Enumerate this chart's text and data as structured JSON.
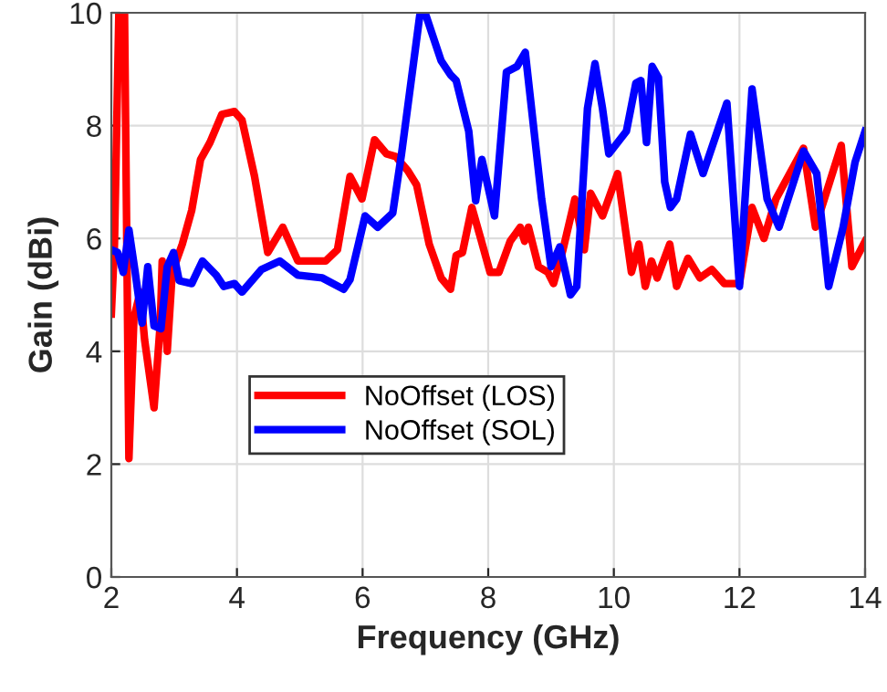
{
  "chart_data": {
    "type": "line",
    "xlabel": "Frequency (GHz)",
    "ylabel": "Gain (dBi)",
    "xlim": [
      2,
      14
    ],
    "xticks": [
      2,
      4,
      6,
      8,
      10,
      12,
      14
    ],
    "ylim": [
      0,
      10
    ],
    "yticks": [
      0,
      2,
      4,
      6,
      8,
      10
    ],
    "grid": true,
    "legend": "bottom left",
    "line_style": "solid",
    "marker": "none",
    "series": [
      {
        "name": "NoOffset (LOS)",
        "color": "#ff0000",
        "x": [
          2.0,
          2.05,
          2.12,
          2.21,
          2.28,
          2.36,
          2.46,
          2.53,
          2.68,
          2.78,
          2.81,
          2.89,
          2.97,
          3.13,
          3.28,
          3.42,
          3.57,
          3.76,
          3.96,
          4.08,
          4.28,
          4.49,
          4.73,
          4.97,
          5.41,
          5.6,
          5.8,
          5.99,
          6.19,
          6.38,
          6.53,
          6.72,
          6.86,
          7.06,
          7.25,
          7.4,
          7.49,
          7.59,
          7.74,
          7.88,
          8.03,
          8.17,
          8.35,
          8.51,
          8.58,
          8.64,
          8.8,
          8.95,
          9.04,
          9.19,
          9.38,
          9.53,
          9.63,
          9.82,
          10.06,
          10.28,
          10.4,
          10.5,
          10.6,
          10.69,
          10.89,
          11.0,
          11.18,
          11.37,
          11.56,
          11.76,
          12.0,
          12.2,
          12.39,
          12.58,
          13.02,
          13.21,
          13.62,
          13.79,
          14.0
        ],
        "values": [
          4.66,
          5.9,
          10,
          10,
          2.1,
          4.6,
          5.05,
          4.2,
          3.0,
          4.5,
          5.6,
          4.0,
          5.4,
          5.9,
          6.5,
          7.4,
          7.7,
          8.2,
          8.25,
          8.1,
          7.1,
          5.75,
          6.2,
          5.6,
          5.6,
          5.8,
          7.1,
          6.7,
          7.75,
          7.5,
          7.45,
          7.2,
          6.95,
          5.9,
          5.3,
          5.1,
          5.7,
          5.75,
          6.55,
          6.0,
          5.4,
          5.4,
          5.95,
          6.2,
          5.95,
          6.2,
          5.5,
          5.4,
          5.2,
          5.8,
          6.7,
          5.8,
          6.8,
          6.4,
          7.15,
          5.4,
          5.9,
          5.15,
          5.6,
          5.3,
          5.9,
          5.15,
          5.65,
          5.3,
          5.45,
          5.2,
          5.2,
          6.55,
          6.0,
          6.7,
          7.6,
          6.2,
          7.65,
          5.5,
          5.95
        ]
      },
      {
        "name": "NoOffset (SOL)",
        "color": "#0000ff",
        "x": [
          2.0,
          2.1,
          2.19,
          2.28,
          2.38,
          2.49,
          2.58,
          2.68,
          2.79,
          2.89,
          2.99,
          3.08,
          3.28,
          3.45,
          3.67,
          3.79,
          3.96,
          4.08,
          4.39,
          4.68,
          4.97,
          5.36,
          5.7,
          5.8,
          6.04,
          6.24,
          6.48,
          6.62,
          6.91,
          7.01,
          7.25,
          7.4,
          7.49,
          7.69,
          7.8,
          7.9,
          8.1,
          8.29,
          8.46,
          8.59,
          8.85,
          9.0,
          9.14,
          9.31,
          9.41,
          9.58,
          9.7,
          9.82,
          9.92,
          10.2,
          10.35,
          10.43,
          10.52,
          10.61,
          10.71,
          10.81,
          10.9,
          11.0,
          11.22,
          11.42,
          11.8,
          12.0,
          12.2,
          12.44,
          12.63,
          13.02,
          13.23,
          13.42,
          13.65,
          13.84,
          14.0
        ],
        "values": [
          5.8,
          5.75,
          5.4,
          6.15,
          5.4,
          4.5,
          5.5,
          4.45,
          4.4,
          5.5,
          5.75,
          5.25,
          5.2,
          5.6,
          5.35,
          5.15,
          5.2,
          5.05,
          5.45,
          5.6,
          5.35,
          5.3,
          5.1,
          5.27,
          6.4,
          6.2,
          6.45,
          7.5,
          9.95,
          9.95,
          9.15,
          8.9,
          8.8,
          7.9,
          6.67,
          7.4,
          6.4,
          8.95,
          9.05,
          9.3,
          6.7,
          5.5,
          5.85,
          5.0,
          5.15,
          8.3,
          9.1,
          8.3,
          7.5,
          7.9,
          8.75,
          8.8,
          7.7,
          9.05,
          8.85,
          7.0,
          6.55,
          6.7,
          7.85,
          7.15,
          8.4,
          5.15,
          8.65,
          6.7,
          6.2,
          7.55,
          7.15,
          5.15,
          6.2,
          7.35,
          7.9
        ]
      }
    ]
  }
}
